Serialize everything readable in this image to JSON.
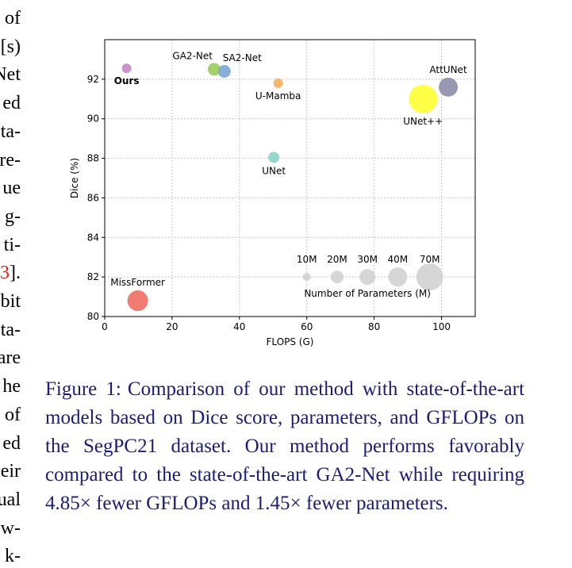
{
  "left_column_fragments": [
    "of",
    "[s)",
    "Net",
    "ed",
    "ta-",
    "re-",
    "ue",
    "g-",
    "ti-",
    "3].",
    "bit",
    "ta-",
    "are",
    "he",
    "of",
    "ed",
    "eir",
    "ual",
    "w-",
    "k-"
  ],
  "left_column_red_index": 9,
  "caption": {
    "label": "Figure 1:",
    "text": "Comparison of our method with state-of-the-art models based on Dice score, parameters, and GFLOPs on the SegPC21 dataset. Our method performs favorably compared to the state-of-the-art GA2-Net while requiring 4.85× fewer GFLOPs and 1.45× fewer parameters."
  },
  "chart_data": {
    "type": "scatter",
    "xlabel": "FLOPS (G)",
    "ylabel": "Dice (%)",
    "xlim": [
      0,
      110
    ],
    "ylim": [
      80,
      94
    ],
    "xticks": [
      0,
      20,
      40,
      60,
      80,
      100
    ],
    "yticks": [
      80,
      82,
      84,
      86,
      88,
      90,
      92
    ],
    "grid": true,
    "points": [
      {
        "label": "Ours",
        "x": 6.5,
        "y": 92.55,
        "size": 6,
        "color": "#c38bc7",
        "label_pos": "below",
        "bold": true
      },
      {
        "label": "GA2-Net",
        "x": 32.5,
        "y": 92.5,
        "size": 8,
        "color": "#9acd5a",
        "label_pos": "above-left",
        "bold": false
      },
      {
        "label": "SA2-Net",
        "x": 35.5,
        "y": 92.4,
        "size": 8,
        "color": "#7aa6d6",
        "label_pos": "above-right",
        "bold": false
      },
      {
        "label": "U-Mamba",
        "x": 51.5,
        "y": 91.8,
        "size": 6,
        "color": "#f4ad5d",
        "label_pos": "below",
        "bold": false
      },
      {
        "label": "AttUNet",
        "x": 102,
        "y": 91.6,
        "size": 12,
        "color": "#8e8ba8",
        "label_pos": "above",
        "bold": false
      },
      {
        "label": "UNet++",
        "x": 94.5,
        "y": 91.0,
        "size": 18,
        "color": "#ffff33",
        "label_pos": "below",
        "bold": false
      },
      {
        "label": "UNet",
        "x": 50.2,
        "y": 88.05,
        "size": 7,
        "color": "#8dd3c7",
        "label_pos": "below",
        "bold": false
      },
      {
        "label": "MissFormer",
        "x": 9.8,
        "y": 80.8,
        "size": 13,
        "color": "#f06e65",
        "label_pos": "above",
        "bold": false
      }
    ],
    "size_legend": {
      "title": "Number of Parameters (M)",
      "items": [
        {
          "label": "10M",
          "size": 5,
          "x": 60,
          "y": 82
        },
        {
          "label": "20M",
          "size": 8,
          "x": 69,
          "y": 82
        },
        {
          "label": "30M",
          "size": 10,
          "x": 78,
          "y": 82
        },
        {
          "label": "40M",
          "size": 12,
          "x": 87,
          "y": 82
        },
        {
          "label": "70M",
          "size": 17,
          "x": 96.5,
          "y": 82
        }
      ],
      "color": "#cfcfcf"
    }
  }
}
